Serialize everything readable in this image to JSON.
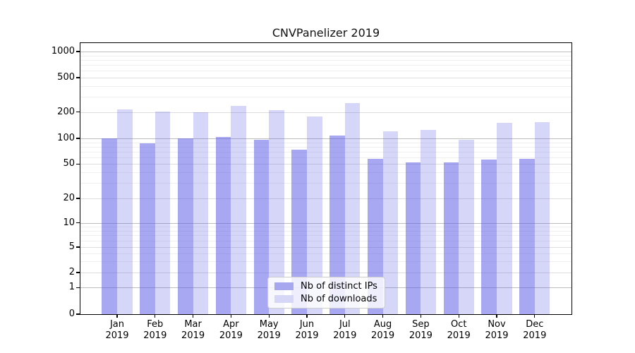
{
  "chart_data": {
    "type": "bar",
    "title": "CNVPanelizer 2019",
    "categories": [
      "Jan",
      "Feb",
      "Mar",
      "Apr",
      "May",
      "Jun",
      "Jul",
      "Aug",
      "Sep",
      "Oct",
      "Nov",
      "Dec"
    ],
    "year": "2019",
    "series": [
      {
        "name": "Nb of distinct IPs",
        "color": "#a7a7f0",
        "base_color": "#5a5ae6",
        "alpha": 0.53,
        "values": [
          100,
          88,
          100,
          103,
          97,
          74,
          107,
          57,
          52,
          52,
          56,
          58
        ]
      },
      {
        "name": "Nb of downloads",
        "color": "#d6d6f6",
        "base_color": "#5a5ae6",
        "alpha": 0.25,
        "values": [
          213,
          201,
          198,
          235,
          211,
          178,
          252,
          121,
          125,
          97,
          149,
          154
        ]
      }
    ],
    "xlabel": "",
    "ylabel": "",
    "yscale": "symlog",
    "yticks": [
      0,
      1,
      2,
      5,
      10,
      20,
      50,
      100,
      200,
      500,
      1000
    ],
    "ylim": [
      0,
      1250
    ],
    "grid": true,
    "legend_position": "lower-center"
  }
}
